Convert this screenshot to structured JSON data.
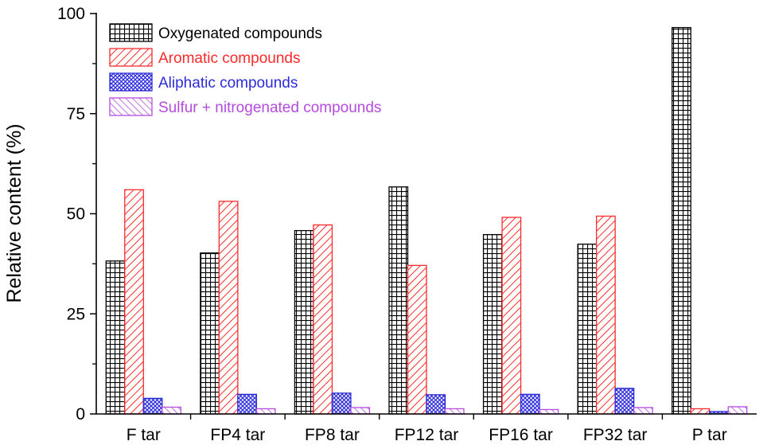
{
  "chart_data": {
    "type": "bar",
    "categories": [
      "F tar",
      "FP4 tar",
      "FP8 tar",
      "FP12 tar",
      "FP16 tar",
      "FP32 tar",
      "P tar"
    ],
    "series": [
      {
        "name": "Oxygenated compounds",
        "values": [
          38.2,
          40.2,
          45.8,
          56.7,
          44.8,
          42.4,
          96.5
        ],
        "color": "#000000",
        "pattern": "grid"
      },
      {
        "name": "Aromatic compounds",
        "values": [
          56.0,
          53.1,
          47.2,
          37.1,
          49.1,
          49.4,
          1.3
        ],
        "color": "#ff2a2a",
        "pattern": "diagonal-up"
      },
      {
        "name": "Aliphatic compounds",
        "values": [
          3.9,
          4.9,
          5.2,
          4.8,
          4.9,
          6.4,
          0.6
        ],
        "color": "#2b2bd9",
        "pattern": "crosshatch"
      },
      {
        "name": "Sulfur + nitrogenated compounds",
        "values": [
          1.7,
          1.3,
          1.6,
          1.3,
          1.1,
          1.6,
          1.8
        ],
        "color": "#b54be0",
        "pattern": "diagonal-down"
      }
    ],
    "ylabel": "Relative content (%)",
    "xlabel": "",
    "ylim": [
      0,
      100
    ],
    "yticks": [
      "0",
      "25",
      "50",
      "75",
      "100"
    ],
    "legend_position": "top-left",
    "grid": false
  }
}
